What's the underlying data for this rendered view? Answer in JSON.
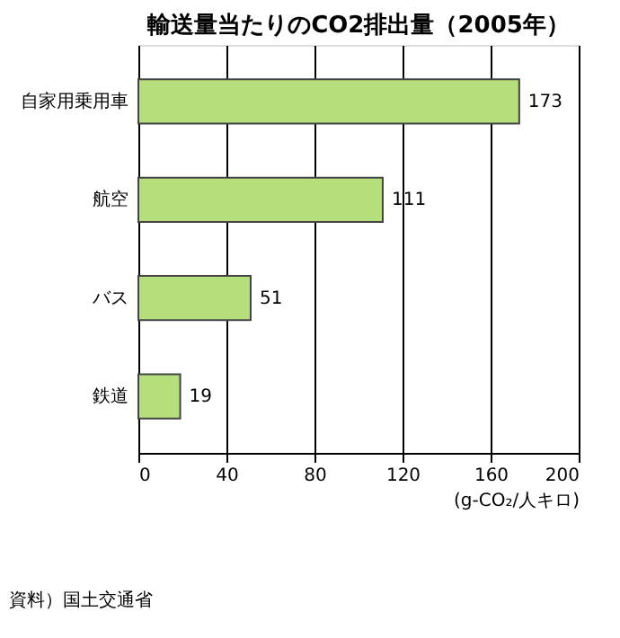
{
  "chart_data": {
    "type": "bar",
    "orientation": "horizontal",
    "title": "輸送量当たりのCO2排出量（2005年）",
    "categories": [
      "自家用乗用車",
      "航空",
      "バス",
      "鉄道"
    ],
    "values": [
      173,
      111,
      51,
      19
    ],
    "color": "#b5df7c",
    "data_labels": true,
    "xlim": [
      0,
      200
    ],
    "xticks": [
      0,
      40,
      80,
      120,
      160,
      200
    ],
    "xlabel": "(g-CO₂/人キロ)",
    "grid": "x",
    "annotations": [
      "資料）国土交通省"
    ]
  }
}
